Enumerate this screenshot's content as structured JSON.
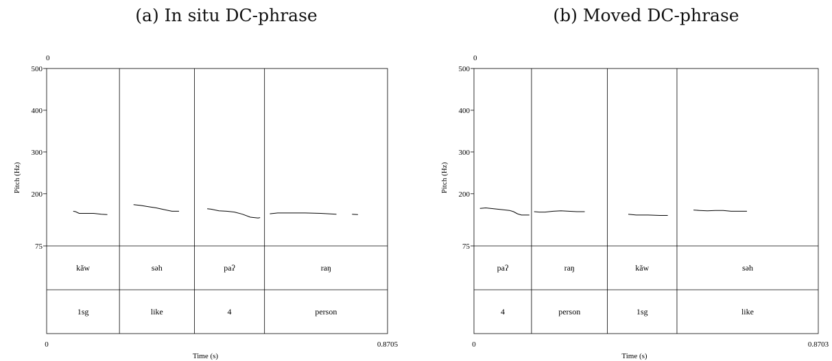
{
  "chart_data": [
    {
      "type": "line",
      "title": "(a) In situ DC-phrase",
      "xlabel": "Time (s)",
      "ylabel": "Pitch (Hz)",
      "ylim": [
        75,
        500
      ],
      "yticks": [
        "500",
        "400",
        "300",
        "200",
        "75"
      ],
      "top_axis_label": "0",
      "xrange": [
        0,
        0.8705
      ],
      "xrange_labels": [
        "0",
        "0.8705"
      ],
      "boundaries": [
        0,
        0.1859,
        0.3773,
        0.5564,
        0.8705
      ],
      "tier1": [
        "kăw",
        "səh",
        "paʔ",
        "raŋ"
      ],
      "tier2": [
        "1sg",
        "like",
        "4",
        "person"
      ],
      "series": [
        {
          "x": [
            0.068,
            0.074,
            0.083,
            0.1,
            0.12,
            0.14,
            0.155
          ],
          "y": [
            158,
            157,
            153,
            153,
            153,
            151,
            150
          ]
        },
        {
          "x": [
            0.222,
            0.24,
            0.26,
            0.28,
            0.3,
            0.32,
            0.338
          ],
          "y": [
            174,
            172,
            169,
            166,
            162,
            158,
            158
          ]
        },
        {
          "x": [
            0.41,
            0.42,
            0.44,
            0.46,
            0.48,
            0.5,
            0.52,
            0.54,
            0.545
          ],
          "y": [
            164,
            163,
            159,
            158,
            156,
            151,
            144,
            142,
            143
          ]
        },
        {
          "x": [
            0.57,
            0.59,
            0.62,
            0.66,
            0.7,
            0.74
          ],
          "y": [
            152,
            154,
            154,
            154,
            153,
            151
          ]
        },
        {
          "x": [
            0.78,
            0.795
          ],
          "y": [
            151,
            150
          ]
        }
      ]
    },
    {
      "type": "line",
      "title": "(b) Moved DC-phrase",
      "xlabel": "Time (s)",
      "ylabel": "Pitch (Hz)",
      "ylim": [
        75,
        500
      ],
      "yticks": [
        "500",
        "400",
        "300",
        "200",
        "75"
      ],
      "top_axis_label": "0",
      "xrange": [
        0,
        0.8703
      ],
      "xrange_labels": [
        "0",
        "0.8703"
      ],
      "boundaries": [
        0,
        0.1455,
        0.3372,
        0.5131,
        0.8703
      ],
      "tier1": [
        "paʔ",
        "raŋ",
        "kăw",
        "səh"
      ],
      "tier2": [
        "4",
        "person",
        "1sg",
        "like"
      ],
      "series": [
        {
          "x": [
            0.015,
            0.03,
            0.05,
            0.07,
            0.09,
            0.1,
            0.11,
            0.12,
            0.135,
            0.14
          ],
          "y": [
            165,
            166,
            164,
            162,
            160,
            157,
            152,
            149,
            149,
            149
          ]
        },
        {
          "x": [
            0.152,
            0.165,
            0.18,
            0.2,
            0.22,
            0.24,
            0.26,
            0.28
          ],
          "y": [
            157,
            156,
            156,
            158,
            159,
            158,
            157,
            157
          ]
        },
        {
          "x": [
            0.39,
            0.41,
            0.44,
            0.47,
            0.49
          ],
          "y": [
            151,
            149,
            149,
            148,
            148
          ]
        },
        {
          "x": [
            0.555,
            0.57,
            0.59,
            0.61,
            0.63,
            0.65,
            0.67,
            0.69
          ],
          "y": [
            161,
            160,
            159,
            160,
            160,
            158,
            158,
            158
          ]
        }
      ]
    }
  ]
}
